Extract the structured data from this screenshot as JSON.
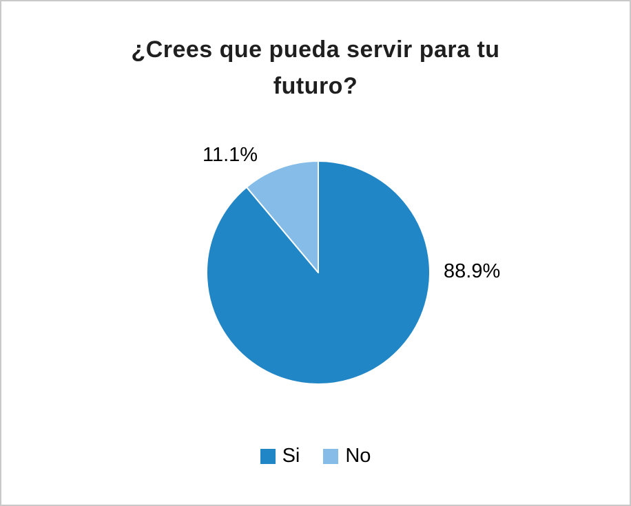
{
  "chart_data": {
    "type": "pie",
    "title": "¿Crees que pueda servir para tu futuro?",
    "labels": [
      "Si",
      "No"
    ],
    "values": [
      88.9,
      11.1
    ],
    "value_labels": [
      "88.9%",
      "11.1%"
    ],
    "colors": [
      "#2186c5",
      "#85bde8"
    ],
    "start_angle_deg": 0,
    "direction": "clockwise",
    "legend_position": "bottom",
    "slice_stroke_color": "#ffffff"
  },
  "frame": {
    "border_color": "#c9c9c9",
    "background": "#ffffff"
  }
}
